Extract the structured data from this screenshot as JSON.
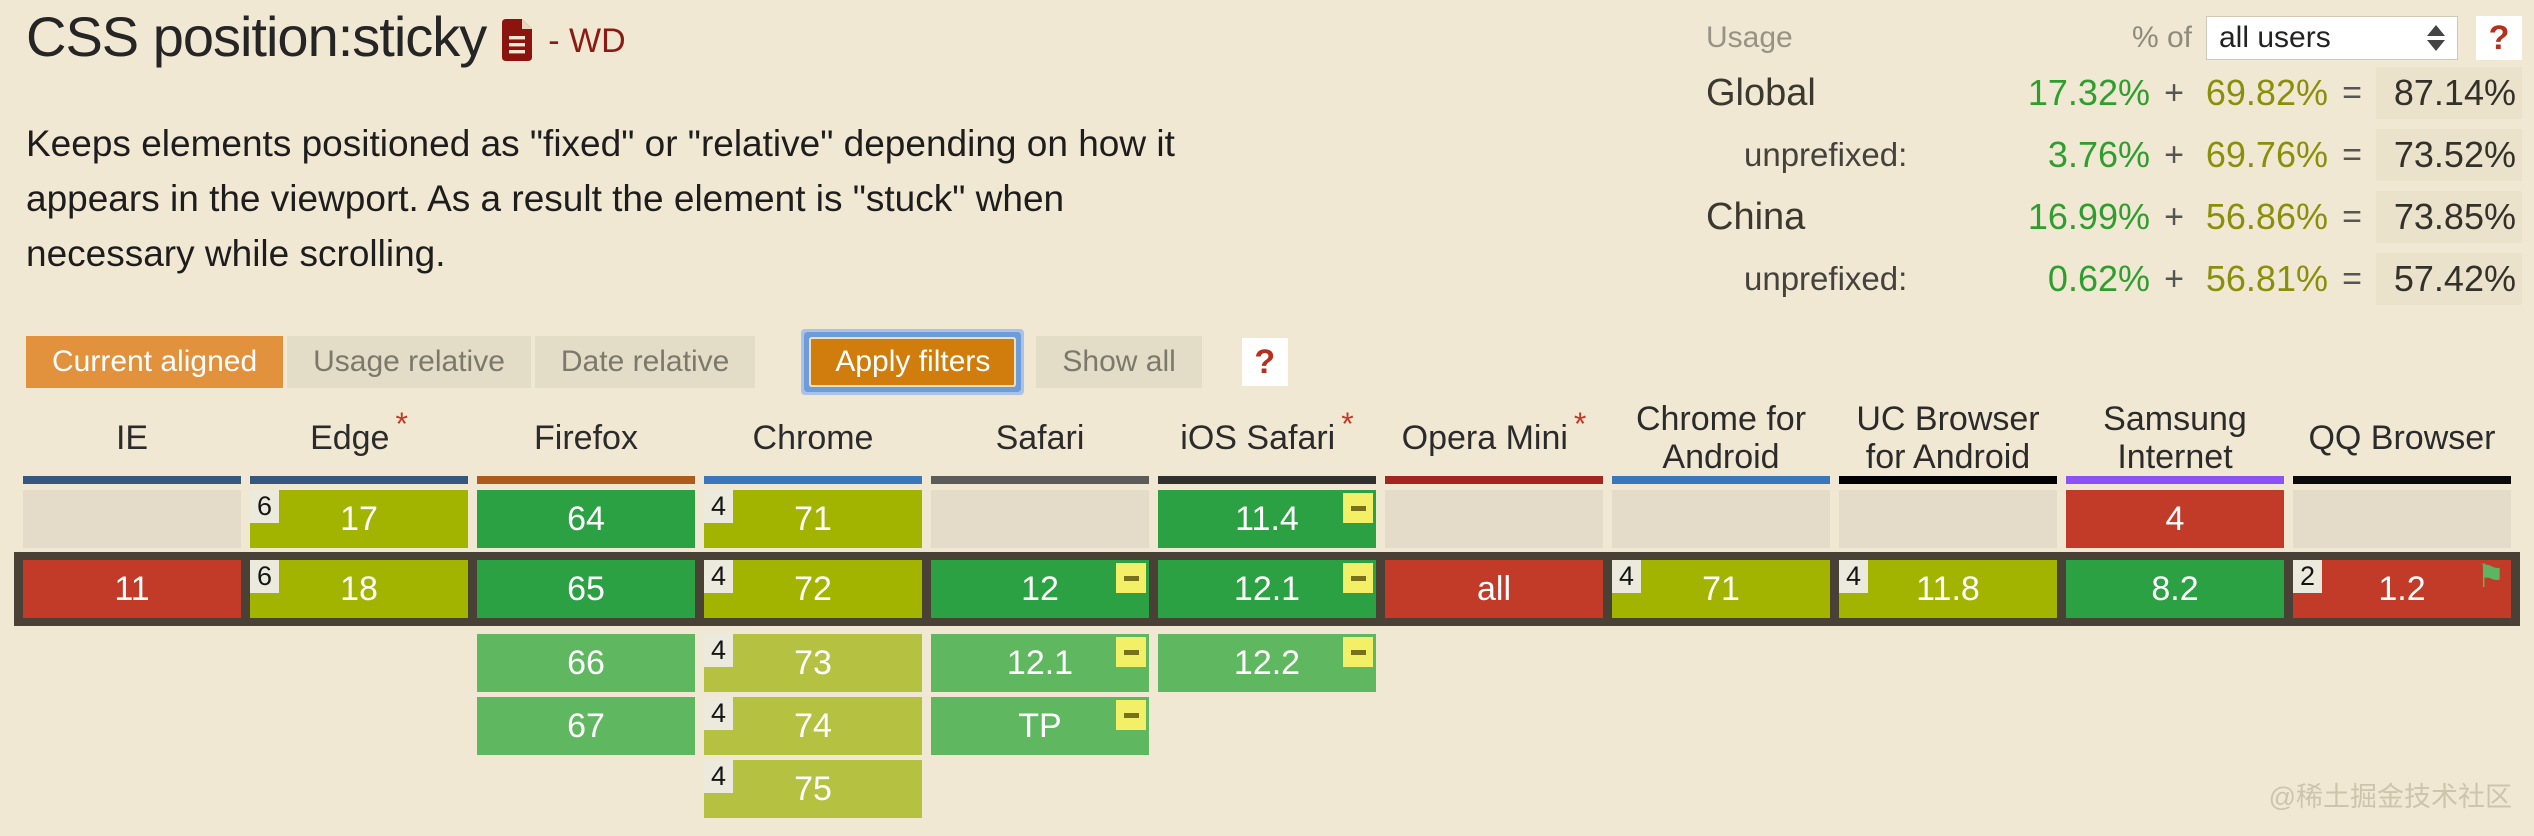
{
  "header": {
    "title": "CSS position:sticky",
    "status": "- WD",
    "description": "Keeps elements positioned as \"fixed\" or \"relative\" depending on how it appears in the viewport. As a result the element is \"stuck\" when necessary while scrolling."
  },
  "usage": {
    "label": "Usage",
    "percent_of_label": "% of",
    "select_value": "all users",
    "help_label": "?",
    "rows": [
      {
        "label": "Global",
        "indent": false,
        "prefixed": "17.32%",
        "plus": "+",
        "unprefixed": "69.82%",
        "equals": "=",
        "total": "87.14%"
      },
      {
        "label": "unprefixed:",
        "indent": true,
        "prefixed": "3.76%",
        "plus": "+",
        "unprefixed": "69.76%",
        "equals": "=",
        "total": "73.52%"
      },
      {
        "label": "China",
        "indent": false,
        "prefixed": "16.99%",
        "plus": "+",
        "unprefixed": "56.86%",
        "equals": "=",
        "total": "73.85%"
      },
      {
        "label": "unprefixed:",
        "indent": true,
        "prefixed": "0.62%",
        "plus": "+",
        "unprefixed": "56.81%",
        "equals": "=",
        "total": "57.42%"
      }
    ]
  },
  "toolbar": {
    "view_buttons": [
      {
        "label": "Current aligned",
        "active": true
      },
      {
        "label": "Usage relative",
        "active": false
      },
      {
        "label": "Date relative",
        "active": false
      }
    ],
    "apply_filters_label": "Apply filters",
    "show_all_label": "Show all",
    "help_label": "?"
  },
  "browser_table": {
    "asterisk_char": "*",
    "flag_icon": "⚑",
    "columns": [
      {
        "name": "IE",
        "asterisk": false,
        "bar": "#36577f",
        "cells": [
          {
            "kind": "empty"
          },
          {
            "label": "11",
            "kind": "none"
          },
          null,
          null,
          null
        ]
      },
      {
        "name": "Edge",
        "asterisk": true,
        "bar": "#36577f",
        "cells": [
          {
            "label": "17",
            "kind": "partial",
            "badge": "6"
          },
          {
            "label": "18",
            "kind": "partial",
            "badge": "6"
          },
          null,
          null,
          null
        ]
      },
      {
        "name": "Firefox",
        "asterisk": false,
        "bar": "#ad5b1d",
        "cells": [
          {
            "label": "64",
            "kind": "full"
          },
          {
            "label": "65",
            "kind": "full"
          },
          {
            "label": "66",
            "kind": "full-future"
          },
          {
            "label": "67",
            "kind": "full-future"
          },
          null
        ]
      },
      {
        "name": "Chrome",
        "asterisk": false,
        "bar": "#3a76ba",
        "cells": [
          {
            "label": "71",
            "kind": "partial",
            "badge": "4"
          },
          {
            "label": "72",
            "kind": "partial",
            "badge": "4"
          },
          {
            "label": "73",
            "kind": "partial-future",
            "badge": "4"
          },
          {
            "label": "74",
            "kind": "partial-future",
            "badge": "4"
          },
          {
            "label": "75",
            "kind": "partial-future",
            "badge": "4"
          }
        ]
      },
      {
        "name": "Safari",
        "asterisk": false,
        "bar": "#5c5c5a",
        "cells": [
          {
            "kind": "empty"
          },
          {
            "label": "12",
            "kind": "full",
            "note": true
          },
          {
            "label": "12.1",
            "kind": "full-future",
            "note": true
          },
          {
            "label": "TP",
            "kind": "full-future",
            "note": true
          },
          null
        ]
      },
      {
        "name": "iOS Safari",
        "asterisk": true,
        "bar": "#30302e",
        "cells": [
          {
            "label": "11.4",
            "kind": "full",
            "note": true
          },
          {
            "label": "12.1",
            "kind": "full",
            "note": true
          },
          {
            "label": "12.2",
            "kind": "full-future",
            "note": true
          },
          null,
          null
        ]
      },
      {
        "name": "Opera Mini",
        "asterisk": true,
        "bar": "#a3251f",
        "cells": [
          {
            "kind": "empty"
          },
          {
            "label": "all",
            "kind": "none"
          },
          null,
          null,
          null
        ]
      },
      {
        "name": "Chrome for Android",
        "asterisk": false,
        "bar": "#3a76ba",
        "cells": [
          {
            "kind": "empty"
          },
          {
            "label": "71",
            "kind": "partial",
            "badge": "4"
          },
          null,
          null,
          null
        ]
      },
      {
        "name": "UC Browser for Android",
        "asterisk": false,
        "bar": "#000000",
        "cells": [
          {
            "kind": "empty"
          },
          {
            "label": "11.8",
            "kind": "partial",
            "badge": "4"
          },
          null,
          null,
          null
        ]
      },
      {
        "name": "Samsung Internet",
        "asterisk": false,
        "bar": "#8c52f5",
        "cells": [
          {
            "label": "4",
            "kind": "none"
          },
          {
            "label": "8.2",
            "kind": "full"
          },
          null,
          null,
          null
        ]
      },
      {
        "name": "QQ Browser",
        "asterisk": false,
        "bar": "#0a0a0a",
        "cells": [
          {
            "kind": "empty"
          },
          {
            "label": "1.2",
            "kind": "none",
            "badge": "2",
            "flag": true
          },
          null,
          null,
          null
        ]
      }
    ]
  },
  "watermark": "@稀土掘金技术社区",
  "colors": {
    "support_full": "#2ba143",
    "support_full_future": "#5fb760",
    "support_partial": "#a2b400",
    "support_partial_future": "#b4c141",
    "support_none": "#c23b28",
    "empty_cell": "#e4dcc8",
    "current_row_border": "#4a4136",
    "accent_orange": "#e2923d",
    "apply_orange": "#d07d0e",
    "note_yellow": "#f3ef66",
    "flag_green": "#5cb560",
    "usage_green": "#2f9e2f",
    "usage_olive": "#8a8f0a"
  }
}
